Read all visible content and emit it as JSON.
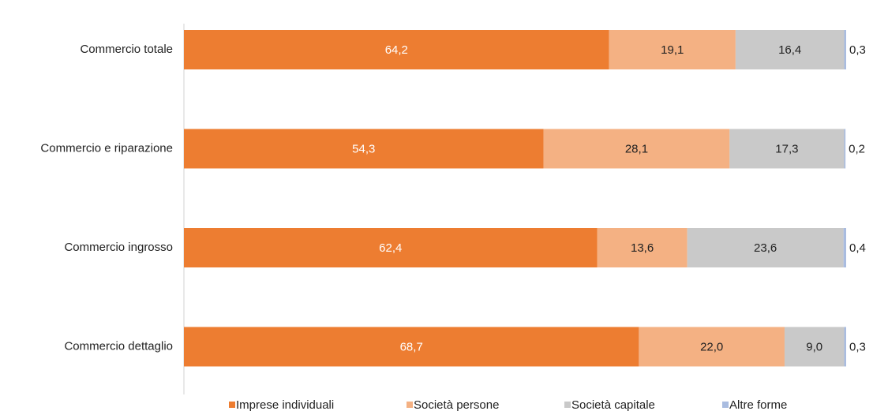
{
  "chart_data": {
    "type": "stacked-bar-horizontal",
    "categories": [
      "Commercio totale",
      "Commercio e riparazione",
      "Commercio ingrosso",
      "Commercio dettaglio"
    ],
    "series": [
      {
        "name": "Imprese individuali",
        "color": "#ED7D31",
        "values": [
          64.2,
          54.3,
          62.4,
          68.7
        ],
        "value_labels": [
          "64,2",
          "54,3",
          "62,4",
          "68,7"
        ]
      },
      {
        "name": "Società persone",
        "color": "#F4B183",
        "values": [
          19.1,
          28.1,
          13.6,
          22.0
        ],
        "value_labels": [
          "19,1",
          "28,1",
          "13,6",
          "22,0"
        ]
      },
      {
        "name": "Società capitale",
        "color": "#C9C9C9",
        "values": [
          16.4,
          17.3,
          23.6,
          9.0
        ],
        "value_labels": [
          "16,4",
          "17,3",
          "23,6",
          "9,0"
        ]
      },
      {
        "name": "Altre forme",
        "color": "#A9BCE0",
        "values": [
          0.3,
          0.2,
          0.4,
          0.3
        ],
        "value_labels": [
          "0,3",
          "0,2",
          "0,4",
          "0,3"
        ]
      }
    ],
    "xlim": [
      0,
      100
    ],
    "legend": "bottom"
  }
}
